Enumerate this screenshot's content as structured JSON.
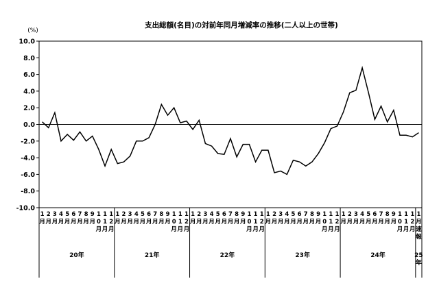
{
  "chart_data": {
    "type": "line",
    "title": "支出総額(名目)の対前年同月増減率の推移(二人以上の世帯)",
    "ylabel": "(%)",
    "ylim": [
      -10,
      10
    ],
    "ytick_step": 2,
    "ytick_labels": [
      "10.0",
      "8.0",
      "6.0",
      "4.0",
      "2.0",
      "0.0",
      "-2.0",
      "-4.0",
      "-6.0",
      "-8.0",
      "-10.0"
    ],
    "grid": false,
    "year_groups": [
      {
        "label": "20年",
        "months": 12
      },
      {
        "label": "21年",
        "months": 12
      },
      {
        "label": "22年",
        "months": 12
      },
      {
        "label": "23年",
        "months": 12
      },
      {
        "label": "24年",
        "months": 12
      },
      {
        "label": "25年",
        "months": 1
      }
    ],
    "last_month_note": "速報",
    "month_suffix": "月",
    "x": [
      "20-01",
      "20-02",
      "20-03",
      "20-04",
      "20-05",
      "20-06",
      "20-07",
      "20-08",
      "20-09",
      "20-10",
      "20-11",
      "20-12",
      "21-01",
      "21-02",
      "21-03",
      "21-04",
      "21-05",
      "21-06",
      "21-07",
      "21-08",
      "21-09",
      "21-10",
      "21-11",
      "21-12",
      "22-01",
      "22-02",
      "22-03",
      "22-04",
      "22-05",
      "22-06",
      "22-07",
      "22-08",
      "22-09",
      "22-10",
      "22-11",
      "22-12",
      "23-01",
      "23-02",
      "23-03",
      "23-04",
      "23-05",
      "23-06",
      "23-07",
      "23-08",
      "23-09",
      "23-10",
      "23-11",
      "23-12",
      "24-01",
      "24-02",
      "24-03",
      "24-04",
      "24-05",
      "24-06",
      "24-07",
      "24-08",
      "24-09",
      "24-10",
      "24-11",
      "24-12",
      "25-01"
    ],
    "values": [
      0.3,
      -0.4,
      1.4,
      -2.0,
      -1.2,
      -1.9,
      -0.9,
      -2.0,
      -1.4,
      -3.0,
      -5.0,
      -3.0,
      -4.7,
      -4.5,
      -3.8,
      -2.0,
      -2.0,
      -1.6,
      0.0,
      2.4,
      1.1,
      2.0,
      0.2,
      0.4,
      -0.6,
      0.5,
      -2.3,
      -2.6,
      -3.5,
      -3.6,
      -1.7,
      -3.9,
      -2.4,
      -2.4,
      -4.5,
      -3.1,
      -3.1,
      -5.8,
      -5.6,
      -6.0,
      -4.3,
      -4.5,
      -5.0,
      -4.5,
      -3.5,
      -2.2,
      -0.5,
      -0.2,
      1.5,
      3.8,
      4.1,
      6.8,
      3.8,
      0.6,
      2.2,
      0.3,
      1.7,
      -1.3,
      -1.3,
      -1.5,
      -1.0
    ]
  }
}
